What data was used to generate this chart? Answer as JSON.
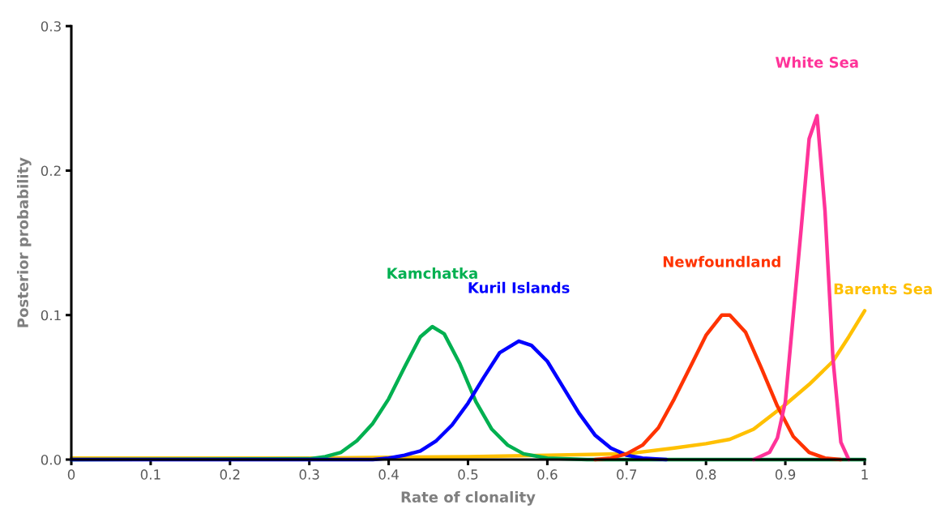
{
  "chart_data": {
    "type": "line",
    "xlabel": "Rate of clonality",
    "ylabel": "Posterior probability",
    "xlim": [
      0,
      1
    ],
    "xticks": [
      0,
      0.1,
      0.2,
      0.3,
      0.4,
      0.5,
      0.6,
      0.7,
      0.8,
      0.9,
      1
    ],
    "ylim": [
      0,
      0.3
    ],
    "yticks": [
      {
        "value": 0,
        "label": "0.0"
      },
      0.1,
      0.2,
      0.3
    ],
    "grid": false,
    "legend": false,
    "marker": "none",
    "line_style": "solid",
    "series": [
      {
        "name": "Barents Sea",
        "color": "#ffc000",
        "x": [
          0,
          0.3,
          0.5,
          0.6,
          0.7,
          0.76,
          0.8,
          0.83,
          0.86,
          0.9,
          0.93,
          0.96,
          0.98,
          1.0
        ],
        "values": [
          0.001,
          0.001,
          0.002,
          0.003,
          0.004,
          0.008,
          0.011,
          0.014,
          0.021,
          0.038,
          0.052,
          0.068,
          0.085,
          0.103
        ]
      },
      {
        "name": "Kamchatka",
        "color": "#00b050",
        "x": [
          0,
          0.3,
          0.32,
          0.34,
          0.36,
          0.38,
          0.4,
          0.42,
          0.44,
          0.455,
          0.47,
          0.49,
          0.51,
          0.53,
          0.55,
          0.57,
          0.6,
          0.65,
          1.0
        ],
        "values": [
          0,
          0.0005,
          0.002,
          0.005,
          0.013,
          0.025,
          0.042,
          0.064,
          0.085,
          0.092,
          0.087,
          0.066,
          0.04,
          0.021,
          0.01,
          0.004,
          0.001,
          0,
          0
        ]
      },
      {
        "name": "Kuril Islands",
        "color": "#0000ff",
        "x": [
          0,
          0.38,
          0.4,
          0.42,
          0.44,
          0.46,
          0.48,
          0.5,
          0.52,
          0.54,
          0.564,
          0.58,
          0.6,
          0.62,
          0.64,
          0.66,
          0.68,
          0.7,
          0.72,
          0.75
        ],
        "values": [
          0,
          0,
          0.001,
          0.003,
          0.006,
          0.013,
          0.024,
          0.039,
          0.057,
          0.074,
          0.082,
          0.079,
          0.068,
          0.05,
          0.032,
          0.017,
          0.008,
          0.003,
          0.001,
          0
        ]
      },
      {
        "name": "Newfoundland",
        "color": "#ff3300",
        "x": [
          0.66,
          0.68,
          0.7,
          0.72,
          0.74,
          0.76,
          0.78,
          0.8,
          0.82,
          0.83,
          0.85,
          0.87,
          0.89,
          0.91,
          0.93,
          0.95,
          0.97
        ],
        "values": [
          0,
          0.001,
          0.004,
          0.01,
          0.022,
          0.042,
          0.064,
          0.086,
          0.1,
          0.1,
          0.088,
          0.063,
          0.037,
          0.016,
          0.005,
          0.001,
          0
        ]
      },
      {
        "name": "White Sea",
        "color": "#ff3399",
        "x": [
          0.86,
          0.88,
          0.89,
          0.9,
          0.91,
          0.92,
          0.93,
          0.94,
          0.95,
          0.96,
          0.97,
          0.98
        ],
        "values": [
          0,
          0.005,
          0.015,
          0.04,
          0.1,
          0.16,
          0.222,
          0.238,
          0.172,
          0.07,
          0.012,
          0
        ]
      }
    ]
  }
}
